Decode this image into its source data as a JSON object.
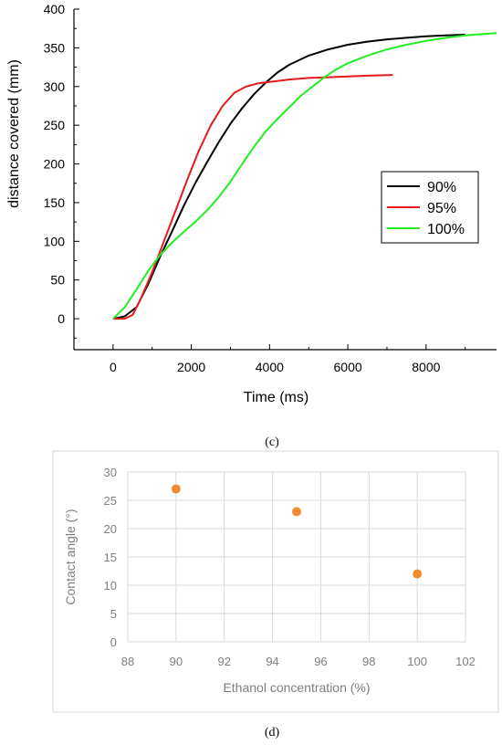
{
  "charts": [
    {
      "id": "c",
      "caption": "(c)",
      "chart_data": {
        "type": "line",
        "title": "",
        "xlabel": "Time (ms)",
        "ylabel": "distance covered (mm)",
        "xlim": [
          -1000,
          9800
        ],
        "ylim": [
          -40,
          400
        ],
        "xticks": [
          0,
          2000,
          4000,
          6000,
          8000
        ],
        "yticks": [
          0,
          50,
          100,
          150,
          200,
          250,
          300,
          350,
          400
        ],
        "grid": false,
        "legend_position": "right",
        "series": [
          {
            "name": "90%",
            "color": "#000000",
            "x": [
              0,
              300,
              600,
              900,
              1200,
              1500,
              1800,
              2100,
              2400,
              2700,
              3000,
              3300,
              3600,
              3900,
              4200,
              4500,
              5000,
              5500,
              6000,
              6500,
              7000,
              7500,
              8000,
              8500,
              9000
            ],
            "y": [
              0,
              3,
              15,
              45,
              80,
              112,
              145,
              175,
              202,
              228,
              252,
              272,
              290,
              305,
              318,
              328,
              340,
              348,
              354,
              358,
              361,
              363,
              365,
              366,
              367
            ]
          },
          {
            "name": "95%",
            "color": "#e41a1c",
            "x": [
              0,
              300,
              500,
              700,
              1000,
              1300,
              1600,
              1900,
              2200,
              2500,
              2800,
              3100,
              3400,
              3700,
              4000,
              4500,
              5000,
              5500,
              6000,
              6500,
              7150
            ],
            "y": [
              0,
              0,
              5,
              25,
              60,
              100,
              140,
              180,
              218,
              250,
              275,
              292,
              300,
              304,
              306,
              309,
              311,
              312,
              313,
              314,
              315
            ]
          },
          {
            "name": "100%",
            "color": "#22ee22",
            "x": [
              0,
              300,
              600,
              900,
              1200,
              1500,
              1800,
              2100,
              2400,
              2700,
              3000,
              3300,
              3600,
              3900,
              4200,
              4500,
              4800,
              5100,
              5400,
              5700,
              6000,
              6500,
              7000,
              7500,
              8000,
              8500,
              9000,
              9500,
              9800
            ],
            "y": [
              0,
              15,
              38,
              62,
              82,
              98,
              112,
              125,
              140,
              157,
              177,
              200,
              222,
              242,
              258,
              273,
              288,
              300,
              312,
              322,
              330,
              340,
              348,
              354,
              359,
              363,
              366,
              368,
              369
            ]
          }
        ]
      }
    },
    {
      "id": "d",
      "caption": "(d)",
      "chart_data": {
        "type": "scatter",
        "title": "",
        "xlabel": "Ethanol concentration (%)",
        "ylabel": "Contact angle (°)",
        "xlim": [
          88,
          102
        ],
        "ylim": [
          0,
          30
        ],
        "xticks": [
          88,
          90,
          92,
          94,
          96,
          98,
          100,
          102
        ],
        "yticks": [
          0,
          5,
          10,
          15,
          20,
          25,
          30
        ],
        "grid": true,
        "marker_color": "#f28a30",
        "series": [
          {
            "x": [
              90,
              95,
              100
            ],
            "y": [
              27,
              23,
              12
            ]
          }
        ]
      }
    }
  ]
}
